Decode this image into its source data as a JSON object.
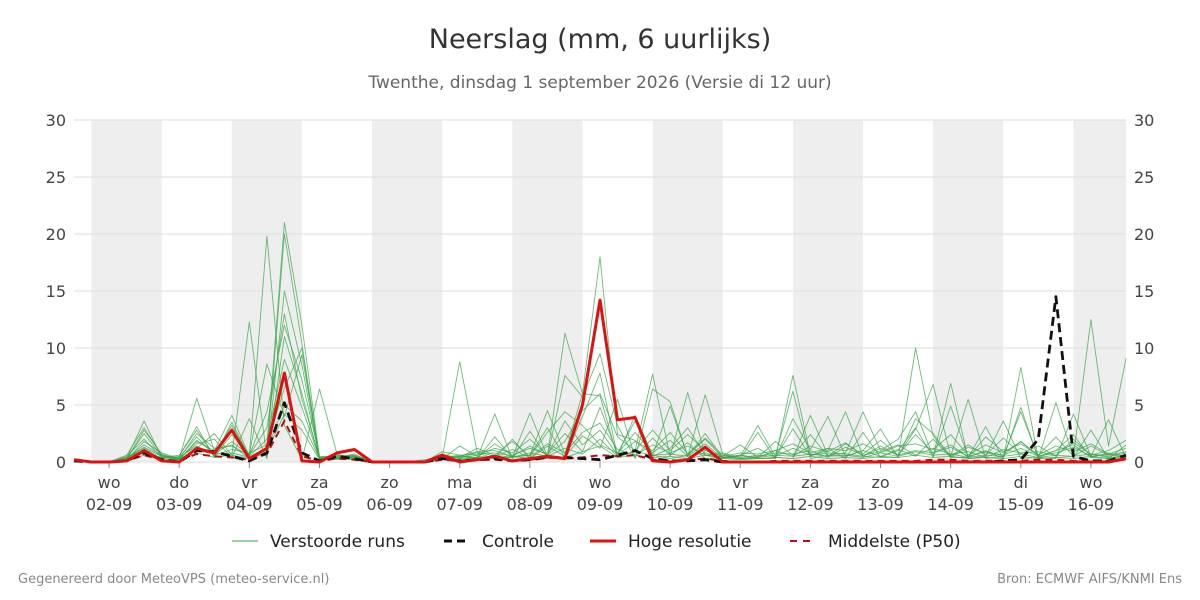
{
  "title": "Neerslag (mm, 6 uurlijks)",
  "subtitle": "Twenthe, dinsdag  1 september 2026 (Versie di 12 uur)",
  "footer_left": "Gegenereerd door MeteoVPS (meteo-service.nl)",
  "footer_right": "Bron: ECMWF AIFS/KNMI Ens",
  "colors": {
    "perturbed": "#3aa64a",
    "control": "#111111",
    "high_res": "#e01010",
    "p50": "#b01010",
    "weekend_band": "#eeeeee",
    "grid": "#dddddd"
  },
  "chart_data": {
    "type": "line",
    "x_unit": "6-hour steps from 01-09 12:00",
    "x_range": [
      0,
      60
    ],
    "ylim": [
      0,
      30
    ],
    "yticks": [
      0,
      5,
      10,
      15,
      20,
      25,
      30
    ],
    "grid": true,
    "legend_position": "bottom",
    "day_ticks": [
      {
        "x": 2,
        "day": "wo",
        "date": "02-09"
      },
      {
        "x": 6,
        "day": "do",
        "date": "03-09"
      },
      {
        "x": 10,
        "day": "vr",
        "date": "04-09"
      },
      {
        "x": 14,
        "day": "za",
        "date": "05-09"
      },
      {
        "x": 18,
        "day": "zo",
        "date": "06-09"
      },
      {
        "x": 22,
        "day": "ma",
        "date": "07-09"
      },
      {
        "x": 26,
        "day": "di",
        "date": "08-09"
      },
      {
        "x": 30,
        "day": "wo",
        "date": "09-09"
      },
      {
        "x": 34,
        "day": "do",
        "date": "10-09"
      },
      {
        "x": 38,
        "day": "vr",
        "date": "11-09"
      },
      {
        "x": 42,
        "day": "za",
        "date": "12-09"
      },
      {
        "x": 46,
        "day": "zo",
        "date": "13-09"
      },
      {
        "x": 50,
        "day": "ma",
        "date": "14-09"
      },
      {
        "x": 54,
        "day": "di",
        "date": "15-09"
      },
      {
        "x": 58,
        "day": "wo",
        "date": "16-09"
      }
    ],
    "shaded_bands": [
      [
        1,
        5
      ],
      [
        9,
        13
      ],
      [
        17,
        21
      ],
      [
        25,
        29
      ],
      [
        33,
        37
      ],
      [
        41,
        45
      ],
      [
        49,
        53
      ],
      [
        57,
        60
      ]
    ],
    "legend": [
      {
        "key": "perturbed",
        "label": "Verstoorde runs"
      },
      {
        "key": "control",
        "label": "Controle"
      },
      {
        "key": "high_res",
        "label": "Hoge resolutie"
      },
      {
        "key": "p50",
        "label": "Middelste (P50)"
      }
    ],
    "high_res": [
      0.2,
      0,
      0,
      0.1,
      1.0,
      0.1,
      0,
      1.2,
      0.8,
      2.8,
      0.3,
      1.2,
      7.8,
      0.1,
      0,
      0.8,
      1.1,
      0,
      0,
      0,
      0,
      0.6,
      0,
      0.2,
      0.5,
      0.1,
      0.3,
      0.5,
      0.3,
      5.0,
      14.2,
      3.7,
      3.9,
      0.1,
      0,
      0.2,
      1.3,
      0,
      0,
      0,
      0,
      0,
      0,
      0,
      0,
      0,
      0,
      0,
      0,
      0,
      0,
      0,
      0,
      0,
      0,
      0,
      0,
      0,
      0,
      0,
      0.3
    ],
    "control": [
      0.1,
      0,
      0,
      0.1,
      0.8,
      0.2,
      0,
      1.0,
      0.9,
      0.5,
      0.1,
      0.8,
      5.2,
      0.8,
      0.1,
      0.5,
      0.3,
      0,
      0,
      0,
      0,
      0.3,
      0.1,
      0.2,
      0.3,
      0.1,
      0.2,
      0.4,
      0.4,
      0.3,
      0.2,
      0.6,
      1.0,
      0.3,
      0.1,
      0.1,
      0.2,
      0,
      0,
      0,
      0,
      0,
      0,
      0,
      0,
      0,
      0,
      0,
      0,
      0,
      0,
      0,
      0,
      0.1,
      0.2,
      2.0,
      14.5,
      0.5,
      0.1,
      0.1,
      0.6
    ],
    "p50": [
      0.1,
      0,
      0,
      0.1,
      0.6,
      0.2,
      0.1,
      0.7,
      0.5,
      0.4,
      0.2,
      0.7,
      3.6,
      0.5,
      0.1,
      0.3,
      0.2,
      0,
      0,
      0,
      0,
      0.2,
      0.1,
      0.2,
      0.2,
      0.1,
      0.2,
      0.4,
      0.3,
      0.4,
      0.6,
      0.5,
      0.6,
      0.2,
      0.1,
      0.2,
      0.3,
      0.1,
      0,
      0,
      0.1,
      0.1,
      0.1,
      0.1,
      0.1,
      0.1,
      0.1,
      0.1,
      0.1,
      0.2,
      0.2,
      0.1,
      0.1,
      0.1,
      0.1,
      0.2,
      0.2,
      0.1,
      0.1,
      0.1,
      0.2
    ],
    "perturbed_runs": [
      [
        0,
        0,
        0,
        0.3,
        3.6,
        0.4,
        0.2,
        1.8,
        1.0,
        1.5,
        0.3,
        1.3,
        21.0,
        12.0,
        0.4,
        0.6,
        0.5,
        0,
        0,
        0,
        0,
        0.4,
        0.5,
        0.9,
        1.0,
        0.5,
        0.6,
        4.5,
        0.7,
        6.0,
        18.0,
        2.4,
        1.9,
        0.6,
        0.3,
        0.6,
        2.0,
        0.4,
        0.6,
        0.3,
        0.3,
        7.6,
        0.6,
        1.0,
        4.4,
        0.5,
        0.4,
        0.4,
        10.0,
        2.3,
        0.4,
        0.4,
        1.0,
        0.3,
        8.3,
        0.3,
        0.4,
        0.5,
        12.5,
        1.4,
        9.1
      ],
      [
        0,
        0,
        0,
        0.6,
        3.0,
        0.6,
        0.3,
        5.6,
        1.0,
        4.1,
        0.5,
        19.8,
        3.2,
        0.2,
        6.4,
        0.7,
        0.3,
        0,
        0,
        0,
        0.2,
        0.4,
        8.8,
        0.8,
        0.3,
        0.4,
        4.3,
        0.5,
        11.3,
        6.0,
        5.8,
        0.4,
        1.0,
        7.7,
        0.5,
        6.1,
        0.6,
        0.4,
        0.5,
        3.2,
        0.5,
        6.2,
        0.3,
        0.6,
        0.8,
        4.4,
        1.0,
        2.0,
        4.4,
        0.5,
        6.9,
        0.3,
        0.5,
        3.6,
        0.3,
        0.4,
        0.3,
        4.2,
        0.5,
        3.7,
        0.4
      ],
      [
        0,
        0,
        0,
        0.2,
        2.8,
        0.7,
        0.2,
        1.2,
        2.5,
        0.6,
        12.3,
        0.4,
        15.0,
        8.5,
        0.3,
        0.4,
        0.6,
        0,
        0,
        0,
        0,
        0.2,
        0.5,
        0.4,
        4.2,
        0.3,
        2.7,
        0.4,
        7.6,
        5.7,
        9.5,
        3.2,
        0.3,
        6.4,
        5.3,
        0.5,
        5.9,
        0.7,
        0.3,
        0.3,
        0.4,
        0.3,
        4.1,
        0.6,
        0.5,
        1.0,
        2.9,
        0.4,
        3.8,
        2.5,
        0.5,
        5.5,
        0.3,
        0.5,
        4.4,
        0.4,
        1.0,
        2.4,
        0.4,
        0.3,
        0.6
      ],
      [
        0,
        0,
        0,
        0.4,
        1.2,
        0.3,
        0.5,
        3.1,
        0.4,
        3.5,
        0.4,
        0.7,
        20.0,
        10.4,
        0.3,
        0.3,
        0.5,
        0,
        0,
        0,
        0,
        0.9,
        0.6,
        0.3,
        2.2,
        0.4,
        0.6,
        3.0,
        0.4,
        4.0,
        7.8,
        0.5,
        4.1,
        0.6,
        4.9,
        0.5,
        2.5,
        0.4,
        0.3,
        2.6,
        0.3,
        3.8,
        1.1,
        4.0,
        0.5,
        1.0,
        0.5,
        1.0,
        3.0,
        0.4,
        4.9,
        0.4,
        3.1,
        0.3,
        4.8,
        0.3,
        5.2,
        0.4,
        2.8,
        0.3,
        1.5
      ],
      [
        0,
        0,
        0,
        0.3,
        2.5,
        0.5,
        0.4,
        2.2,
        0.6,
        1.8,
        0.6,
        4.4,
        12.0,
        7.2,
        0.5,
        0.4,
        0.3,
        0,
        0,
        0,
        0,
        0.6,
        0.4,
        1.2,
        0.6,
        1.8,
        0.5,
        2.6,
        4.4,
        3.2,
        1.5,
        0.8,
        3.6,
        0.5,
        1.2,
        3.0,
        0.6,
        0.5,
        1.5,
        0.4,
        1.8,
        0.6,
        2.4,
        0.5,
        1.6,
        0.7,
        1.9,
        0.6,
        2.9,
        6.8,
        0.5,
        1.5,
        0.6,
        2.1,
        0.7,
        1.4,
        0.5,
        2.0,
        0.6,
        1.0,
        1.9
      ],
      [
        0,
        0,
        0,
        0.2,
        1.8,
        0.8,
        0.3,
        1.6,
        2.0,
        0.4,
        3.8,
        0.3,
        11.0,
        6.0,
        0.2,
        0.5,
        0.4,
        0,
        0,
        0,
        0,
        0.3,
        1.4,
        0.5,
        0.4,
        2.0,
        0.3,
        1.4,
        0.5,
        2.3,
        1.2,
        5.5,
        0.4,
        2.1,
        0.6,
        1.7,
        0.3,
        0.4,
        0.6,
        1.2,
        0.4,
        2.9,
        0.5,
        1.2,
        0.3,
        2.6,
        0.4,
        1.1,
        0.5,
        2.0,
        0.4,
        1.3,
        0.8,
        0.6,
        1.8,
        0.5,
        1.0,
        1.5,
        0.4,
        0.8,
        0.5
      ],
      [
        0,
        0,
        0,
        0.5,
        2.0,
        0.4,
        0.6,
        2.8,
        0.5,
        2.4,
        0.7,
        8.6,
        4.0,
        9.4,
        0.4,
        0.3,
        0.5,
        0,
        0,
        0,
        0,
        0.5,
        0.3,
        0.4,
        1.6,
        0.6,
        1.2,
        0.7,
        2.5,
        0.9,
        4.8,
        0.7,
        2.6,
        0.8,
        1.9,
        0.5,
        1.6,
        0.3,
        0.6,
        0.4,
        1.0,
        0.5,
        1.4,
        0.9,
        1.7,
        0.5,
        1.2,
        0.6,
        2.4,
        0.8,
        1.5,
        0.4,
        2.2,
        0.9,
        1.6,
        0.6,
        2.2,
        0.5,
        1.4,
        0.6,
        0.9
      ],
      [
        0,
        0,
        0,
        0.3,
        1.5,
        0.6,
        0.2,
        1.9,
        0.8,
        3.2,
        0.5,
        2.0,
        9.0,
        4.8,
        0.3,
        0.6,
        0.3,
        0,
        0,
        0,
        0,
        0.4,
        0.6,
        0.7,
        0.8,
        0.5,
        1.4,
        0.6,
        3.6,
        1.5,
        2.8,
        0.6,
        1.8,
        1.0,
        2.6,
        0.7,
        2.1,
        0.6,
        0.3,
        0.5,
        0.8,
        0.7,
        1.0,
        0.4,
        1.3,
        0.6,
        0.9,
        1.5,
        0.6,
        1.2,
        0.7,
        0.9,
        0.4,
        1.1,
        0.8,
        0.9,
        0.6,
        1.7,
        0.7,
        0.5,
        0.8
      ],
      [
        0,
        0,
        0,
        0.4,
        1.0,
        0.3,
        0.4,
        1.4,
        0.6,
        1.1,
        0.8,
        1.5,
        6.5,
        10.0,
        0.2,
        0.4,
        0.7,
        0,
        0,
        0,
        0,
        0.7,
        0.3,
        0.9,
        0.5,
        1.1,
        0.4,
        1.6,
        0.8,
        2.6,
        3.4,
        1.1,
        0.6,
        1.5,
        0.8,
        1.4,
        0.6,
        0.8,
        0.4,
        0.6,
        0.5,
        1.2,
        0.6,
        0.8,
        0.7,
        0.5,
        1.4,
        0.6,
        1.0,
        0.8,
        1.3,
        0.5,
        0.9,
        0.6,
        1.2,
        0.5,
        0.8,
        1.3,
        0.5,
        0.7,
        0.4
      ],
      [
        0,
        0,
        0,
        0.2,
        0.8,
        0.4,
        0.3,
        1.0,
        0.7,
        0.8,
        0.4,
        1.1,
        5.0,
        3.6,
        0.3,
        0.2,
        0.4,
        0,
        0,
        0,
        0,
        0.2,
        0.5,
        0.3,
        0.6,
        0.4,
        0.8,
        0.5,
        1.2,
        0.7,
        2.0,
        0.5,
        0.9,
        0.6,
        0.7,
        0.5,
        0.8,
        0.4,
        0.3,
        0.4,
        0.6,
        0.5,
        0.7,
        0.5,
        0.6,
        0.4,
        0.8,
        0.5,
        0.9,
        0.6,
        0.7,
        0.4,
        0.6,
        0.5,
        0.7,
        0.4,
        0.6,
        0.5,
        0.7,
        0.4,
        0.5
      ],
      [
        0,
        0,
        0,
        0.1,
        0.6,
        0.2,
        0.2,
        0.8,
        0.4,
        0.6,
        0.3,
        0.9,
        4.2,
        2.8,
        0.2,
        0.3,
        0.2,
        0,
        0,
        0,
        0,
        0.3,
        0.2,
        0.4,
        0.3,
        0.5,
        0.3,
        0.6,
        0.4,
        0.9,
        1.4,
        0.4,
        0.6,
        0.4,
        0.5,
        0.3,
        0.6,
        0.3,
        0.2,
        0.3,
        0.4,
        0.3,
        0.5,
        0.3,
        0.4,
        0.3,
        0.5,
        0.4,
        0.6,
        0.4,
        0.5,
        0.3,
        0.4,
        0.3,
        0.5,
        0.3,
        0.4,
        0.3,
        0.5,
        0.3,
        0.4
      ],
      [
        0,
        0,
        0,
        0.3,
        1.3,
        0.5,
        0.3,
        2.5,
        1.2,
        1.4,
        0.6,
        3.0,
        13.0,
        5.5,
        0.4,
        0.5,
        0.6,
        0,
        0,
        0,
        0,
        0.5,
        0.4,
        0.6,
        1.2,
        0.8,
        2.0,
        0.6,
        1.8,
        4.5,
        6.0,
        2.2,
        1.0,
        2.8,
        1.0,
        2.4,
        1.0,
        0.5,
        0.8,
        0.7,
        1.0,
        1.6,
        0.8,
        1.2,
        1.0,
        1.6,
        0.8,
        1.4,
        1.6,
        1.1,
        2.4,
        0.6,
        1.5,
        0.8,
        1.8,
        0.6,
        1.4,
        0.9,
        1.6,
        0.7,
        1.2
      ]
    ]
  }
}
